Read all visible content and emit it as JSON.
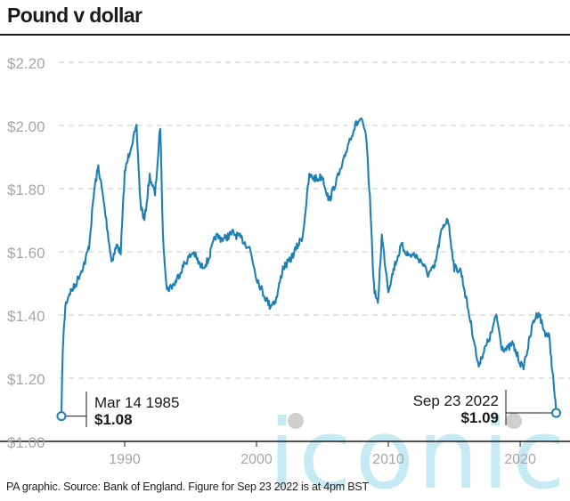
{
  "title": "Pound v dollar",
  "footer": "PA graphic. Source: Bank of England. Figure for Sep 23 2022 is at 4pm BST",
  "watermark": "iconic",
  "colors": {
    "line": "#1f7fb3",
    "grid": "#c9c9c9",
    "tick_text": "#a6a6a6",
    "watermark": "#7fd0e6"
  },
  "chart_data": {
    "type": "line",
    "title": "Pound v dollar",
    "xlabel": "",
    "ylabel": "",
    "xlim": [
      1985.0,
      2022.9
    ],
    "ylim": [
      1.0,
      2.2
    ],
    "yticks": [
      1.0,
      1.2,
      1.4,
      1.6,
      1.8,
      2.0,
      2.2
    ],
    "ytick_labels": [
      "$1.00",
      "$1.20",
      "$1.40",
      "$1.60",
      "$1.80",
      "$2.00",
      "$2.20"
    ],
    "xticks": [
      1990,
      2000,
      2010,
      2020
    ],
    "xtick_labels": [
      "1990",
      "2000",
      "2010",
      "2020"
    ],
    "grid": true,
    "series": [
      {
        "x": [
          1985.2,
          1985.3,
          1985.5,
          1985.8,
          1986.2,
          1986.6,
          1987.0,
          1987.3,
          1987.7,
          1988.0,
          1988.3,
          1988.6,
          1989.0,
          1989.4,
          1989.7,
          1990.0,
          1990.5,
          1990.9,
          1991.2,
          1991.5,
          1991.9,
          1992.3,
          1992.6,
          1992.7,
          1992.9,
          1993.2,
          1993.8,
          1994.5,
          1995.2,
          1995.8,
          1996.3,
          1996.9,
          1997.5,
          1998.2,
          1998.9,
          1999.5,
          2000.0,
          2000.5,
          2001.0,
          2001.5,
          2002.0,
          2002.5,
          2003.0,
          2003.5,
          2004.0,
          2004.6,
          2005.0,
          2005.5,
          2006.0,
          2006.5,
          2007.0,
          2007.5,
          2007.9,
          2008.3,
          2008.6,
          2008.9,
          2009.2,
          2009.5,
          2010.0,
          2010.5,
          2011.0,
          2011.5,
          2012.0,
          2012.5,
          2013.0,
          2013.5,
          2014.0,
          2014.5,
          2015.0,
          2015.5,
          2016.0,
          2016.5,
          2016.8,
          2017.3,
          2017.8,
          2018.2,
          2018.6,
          2019.0,
          2019.4,
          2019.8,
          2020.2,
          2020.6,
          2021.0,
          2021.4,
          2021.8,
          2022.2,
          2022.5,
          2022.73
        ],
        "y": [
          1.08,
          1.29,
          1.43,
          1.47,
          1.49,
          1.53,
          1.57,
          1.62,
          1.8,
          1.87,
          1.79,
          1.7,
          1.57,
          1.62,
          1.6,
          1.85,
          1.94,
          1.99,
          1.75,
          1.7,
          1.84,
          1.78,
          1.94,
          2.0,
          1.65,
          1.48,
          1.5,
          1.56,
          1.6,
          1.55,
          1.57,
          1.65,
          1.64,
          1.66,
          1.64,
          1.61,
          1.52,
          1.47,
          1.43,
          1.45,
          1.55,
          1.57,
          1.61,
          1.65,
          1.84,
          1.83,
          1.84,
          1.76,
          1.82,
          1.87,
          1.95,
          2.0,
          2.02,
          1.97,
          1.77,
          1.49,
          1.43,
          1.65,
          1.48,
          1.56,
          1.62,
          1.59,
          1.59,
          1.57,
          1.53,
          1.55,
          1.66,
          1.71,
          1.55,
          1.54,
          1.43,
          1.32,
          1.24,
          1.29,
          1.34,
          1.4,
          1.3,
          1.29,
          1.31,
          1.27,
          1.23,
          1.3,
          1.38,
          1.41,
          1.35,
          1.33,
          1.2,
          1.09
        ]
      }
    ],
    "annotations": [
      {
        "date": "Mar 14 1985",
        "value": "$1.08",
        "x": 1985.2,
        "y": 1.08
      },
      {
        "date": "Sep 23 2022",
        "value": "$1.09",
        "x": 2022.73,
        "y": 1.09
      }
    ]
  }
}
